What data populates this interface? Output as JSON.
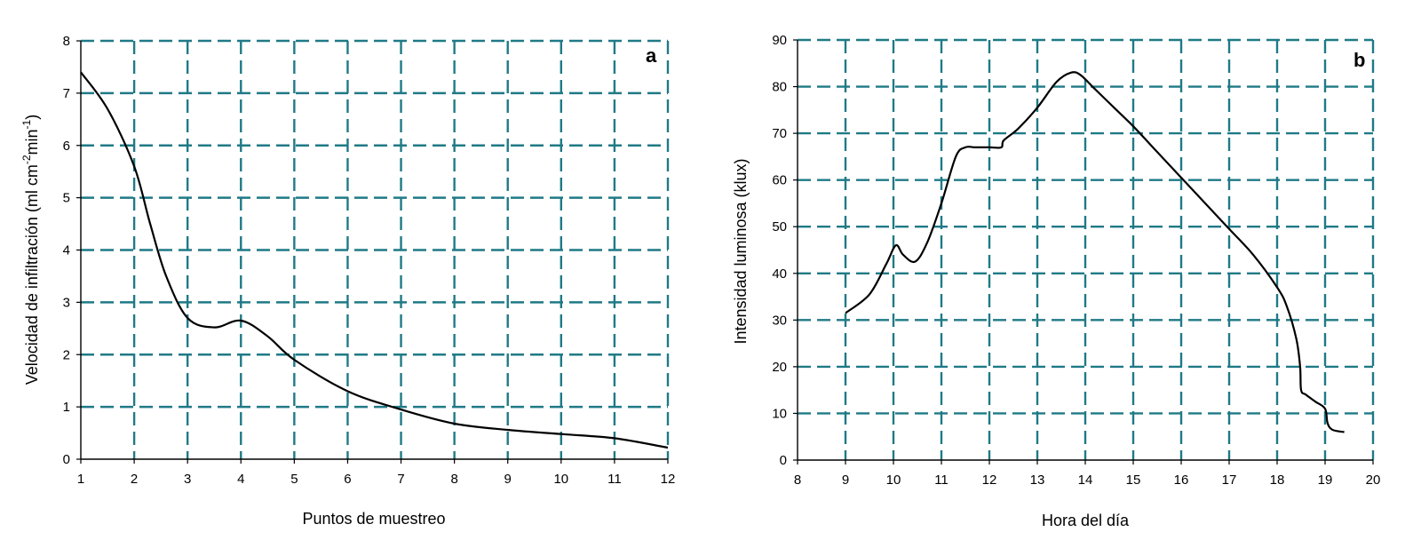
{
  "chart_data": [
    {
      "type": "line",
      "panel_label": "a",
      "xlabel": "Puntos de muestreo",
      "ylabel_main": "Velocidad de infiltración (ml cm",
      "ylabel_sup1": "-2",
      "ylabel_mid": "min",
      "ylabel_sup2": "-1",
      "ylabel_end": ")",
      "xlim": [
        1,
        12
      ],
      "ylim": [
        0,
        8
      ],
      "xticks": [
        1,
        2,
        3,
        4,
        5,
        6,
        7,
        8,
        9,
        10,
        11,
        12
      ],
      "yticks": [
        0,
        1,
        2,
        3,
        4,
        5,
        6,
        7,
        8
      ],
      "grid": true,
      "series": [
        {
          "x": [
            1,
            1.5,
            2,
            2.3,
            2.6,
            3,
            3.5,
            4,
            4.5,
            5,
            6,
            7,
            8,
            9,
            10,
            11,
            12
          ],
          "y": [
            7.4,
            6.7,
            5.6,
            4.5,
            3.5,
            2.7,
            2.52,
            2.65,
            2.35,
            1.9,
            1.3,
            0.95,
            0.68,
            0.56,
            0.48,
            0.4,
            0.22
          ]
        }
      ]
    },
    {
      "type": "line",
      "panel_label": "b",
      "xlabel": "Hora del día",
      "ylabel": "Intensidad luminosa (klux)",
      "xlim": [
        8,
        20
      ],
      "ylim": [
        0,
        90
      ],
      "xticks": [
        8,
        9,
        10,
        11,
        12,
        13,
        14,
        15,
        16,
        17,
        18,
        19,
        20
      ],
      "yticks": [
        0,
        10,
        20,
        30,
        40,
        50,
        60,
        70,
        80,
        90
      ],
      "grid": true,
      "series": [
        {
          "x": [
            9,
            9.5,
            9.85,
            10.05,
            10.2,
            10.45,
            10.7,
            11,
            11.3,
            11.5,
            11.7,
            12,
            12.25,
            12.3,
            12.6,
            13,
            13.4,
            13.7,
            13.9,
            14.2,
            14.6,
            15,
            15.5,
            16,
            16.5,
            17,
            17.5,
            18,
            18.2,
            18.4,
            18.48,
            18.5,
            18.6,
            18.8,
            19,
            19.05,
            19.15,
            19.4
          ],
          "y": [
            31.5,
            35.5,
            42,
            46,
            44,
            42.5,
            46.5,
            55,
            65,
            67,
            67,
            67,
            67,
            68.5,
            71,
            75.5,
            81,
            83,
            82.5,
            79.5,
            75.5,
            71.5,
            66,
            60.5,
            55,
            49.5,
            44,
            37,
            33,
            26,
            20,
            15,
            14,
            12.5,
            11,
            8,
            6.5,
            6
          ]
        }
      ]
    }
  ]
}
